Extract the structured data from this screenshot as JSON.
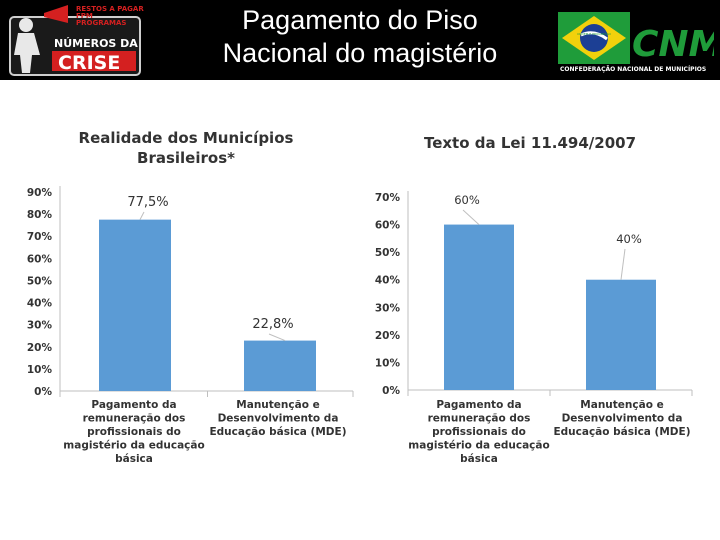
{
  "header": {
    "title_line1": "Pagamento do Piso",
    "title_line2": "Nacional do magistério",
    "logo_left": {
      "tag_lines": [
        "RESTOS A PAGAR",
        "FPM",
        "PROGRAMAS"
      ],
      "line1": "NÚMEROS DA",
      "line2": "CRISE"
    },
    "logo_right": {
      "flag_band": "ORDEM E PROGRESSO",
      "acronym": "CNM",
      "tagline": "CONFEDERAÇÃO NACIONAL DE MUNICÍPIOS"
    }
  },
  "colors": {
    "bar": "#5b9bd5",
    "header_bg": "#000000",
    "logo_red": "#d42020",
    "cnm_green": "#1f9c3a",
    "cnm_yellow": "#f2d10c",
    "cnm_blue": "#1c3f94"
  },
  "chart_data": [
    {
      "type": "bar",
      "title_lines": [
        "Realidade dos Municípios",
        "Brasileiros*"
      ],
      "categories": [
        [
          "Pagamento da",
          "remuneração dos",
          "profissionais do",
          "magistério da educação",
          "básica"
        ],
        [
          "Manutenção e",
          "Desenvolvimento da",
          "Educação básica (MDE)"
        ]
      ],
      "values": [
        77.5,
        22.8
      ],
      "data_labels": [
        "77,5%",
        "22,8%"
      ],
      "yticks": [
        "0%",
        "10%",
        "20%",
        "30%",
        "40%",
        "50%",
        "60%",
        "70%",
        "80%",
        "90%"
      ],
      "ylim": [
        0,
        90
      ],
      "grid": false,
      "legend": "none"
    },
    {
      "type": "bar",
      "title_lines": [
        "Texto da Lei 11.494/2007"
      ],
      "categories": [
        [
          "Pagamento da",
          "remuneração dos",
          "profissionais do",
          "magistério da educação",
          "básica"
        ],
        [
          "Manutenção e",
          "Desenvolvimento da",
          "Educação básica (MDE)"
        ]
      ],
      "values": [
        60,
        40
      ],
      "data_labels": [
        "60%",
        "40%"
      ],
      "yticks": [
        "0%",
        "10%",
        "20%",
        "30%",
        "40%",
        "50%",
        "60%",
        "70%"
      ],
      "ylim": [
        0,
        70
      ],
      "grid": false,
      "legend": "none"
    }
  ]
}
